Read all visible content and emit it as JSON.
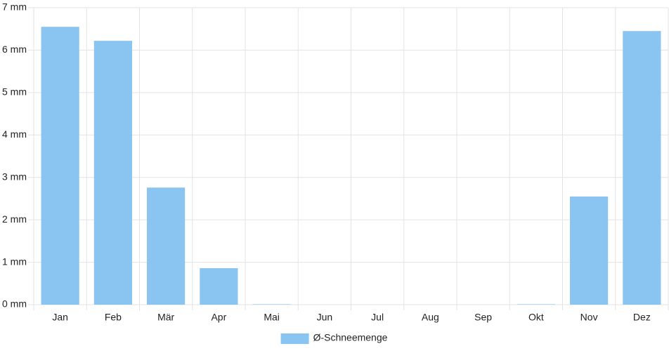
{
  "chart_data": {
    "type": "bar",
    "categories": [
      "Jan",
      "Feb",
      "Mär",
      "Apr",
      "Mai",
      "Jun",
      "Jul",
      "Aug",
      "Sep",
      "Okt",
      "Nov",
      "Dez"
    ],
    "series": [
      {
        "name": "Ø-Schneemenge",
        "color": "#89c5f0",
        "values": [
          6.55,
          6.22,
          2.76,
          0.86,
          0.01,
          0,
          0,
          0,
          0,
          0.01,
          2.55,
          6.45
        ]
      }
    ],
    "ylim": [
      0,
      7
    ],
    "yticks": [
      {
        "value": 0,
        "label": "0 mm"
      },
      {
        "value": 1,
        "label": "1 mm"
      },
      {
        "value": 2,
        "label": "2 mm"
      },
      {
        "value": 3,
        "label": "3 mm"
      },
      {
        "value": 4,
        "label": "4 mm"
      },
      {
        "value": 5,
        "label": "5 mm"
      },
      {
        "value": 6,
        "label": "6 mm"
      },
      {
        "value": 7,
        "label": "7 mm"
      }
    ],
    "grid": true,
    "legend": "bottom"
  }
}
